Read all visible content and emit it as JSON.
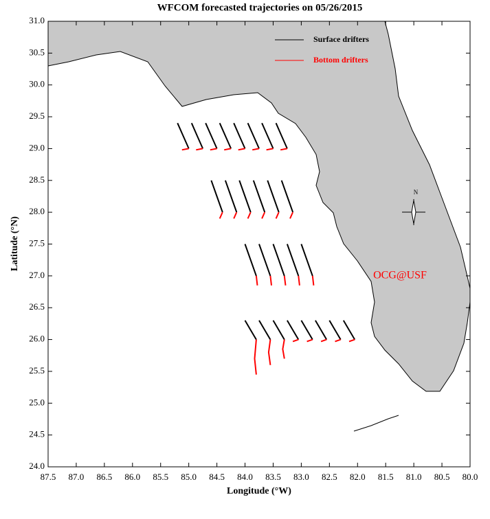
{
  "chart_data": {
    "type": "map",
    "title": "WFCOM forecasted trajectories on 05/26/2015",
    "x_label": "Longitude (°W)",
    "y_label": "Latitude (°N)",
    "annotation": "OCG@USF",
    "compass_label": "N",
    "xlim": [
      87.5,
      80.0
    ],
    "ylim": [
      24.0,
      31.0
    ],
    "xticks": [
      87.5,
      {
        "value": 87,
        "label": "87.0"
      },
      86.5,
      {
        "value": 86,
        "label": "86.0"
      },
      85.5,
      {
        "value": 85,
        "label": "85.0"
      },
      84.5,
      {
        "value": 84,
        "label": "84.0"
      },
      83.5,
      {
        "value": 83,
        "label": "83.0"
      },
      82.5,
      {
        "value": 82,
        "label": "82.0"
      },
      81.5,
      {
        "value": 81,
        "label": "81.0"
      },
      80.5,
      {
        "value": 80,
        "label": "80.0"
      }
    ],
    "yticks": [
      {
        "value": 24,
        "label": "24.0"
      },
      24.5,
      {
        "value": 25,
        "label": "25.0"
      },
      25.5,
      {
        "value": 26,
        "label": "26.0"
      },
      26.5,
      {
        "value": 27,
        "label": "27.0"
      },
      27.5,
      {
        "value": 28,
        "label": "28.0"
      },
      28.5,
      {
        "value": 29,
        "label": "29.0"
      },
      29.5,
      {
        "value": 30,
        "label": "30.0"
      },
      30.5,
      {
        "value": 31,
        "label": "31.0"
      }
    ],
    "series": [
      {
        "name": "Surface drifters",
        "color": "#000000",
        "x": [
          85.0,
          85.1,
          85.2,
          null,
          84.75,
          84.85,
          84.95,
          null,
          84.5,
          84.6,
          84.7,
          null,
          84.25,
          84.35,
          84.45,
          null,
          84.0,
          84.1,
          84.2,
          null,
          83.75,
          83.85,
          83.95,
          null,
          83.5,
          83.6,
          83.7,
          null,
          83.25,
          83.35,
          83.45,
          null,
          84.4,
          84.5,
          84.6,
          null,
          84.15,
          84.25,
          84.35,
          null,
          83.9,
          84.0,
          84.1,
          null,
          83.65,
          83.75,
          83.85,
          null,
          83.4,
          83.5,
          83.6,
          null,
          83.15,
          83.25,
          83.35,
          null,
          83.8,
          83.9,
          84.0,
          null,
          83.55,
          83.65,
          83.75,
          null,
          83.3,
          83.4,
          83.5,
          null,
          83.05,
          83.15,
          83.25,
          null,
          82.8,
          82.9,
          83.0,
          null,
          83.8,
          83.9,
          84.0,
          null,
          83.55,
          83.65,
          83.75,
          null,
          83.3,
          83.4,
          83.5,
          null,
          83.05,
          83.15,
          83.25,
          null,
          82.8,
          82.9,
          83.0,
          null,
          82.55,
          82.65,
          82.75,
          null,
          82.3,
          82.4,
          82.5,
          null,
          82.05,
          82.15,
          82.25
        ],
        "values": [
          29.0,
          29.2,
          29.4,
          null,
          29.0,
          29.2,
          29.4,
          null,
          29.0,
          29.2,
          29.4,
          null,
          29.0,
          29.2,
          29.4,
          null,
          29.0,
          29.2,
          29.4,
          null,
          29.0,
          29.2,
          29.4,
          null,
          29.0,
          29.2,
          29.4,
          null,
          29.0,
          29.2,
          29.4,
          null,
          28.0,
          28.25,
          28.5,
          null,
          28.0,
          28.25,
          28.5,
          null,
          28.0,
          28.25,
          28.5,
          null,
          28.0,
          28.25,
          28.5,
          null,
          28.0,
          28.25,
          28.5,
          null,
          28.0,
          28.25,
          28.5,
          null,
          27.0,
          27.25,
          27.5,
          null,
          27.0,
          27.25,
          27.5,
          null,
          27.0,
          27.25,
          27.5,
          null,
          27.0,
          27.25,
          27.5,
          null,
          27.0,
          27.25,
          27.5,
          null,
          26.0,
          26.15,
          26.3,
          null,
          26.0,
          26.15,
          26.3,
          null,
          26.0,
          26.15,
          26.3,
          null,
          26.0,
          26.15,
          26.3,
          null,
          26.0,
          26.15,
          26.3,
          null,
          26.0,
          26.15,
          26.3,
          null,
          26.0,
          26.15,
          26.3,
          null,
          26.0,
          26.15,
          26.3
        ]
      },
      {
        "name": "Bottom drifters",
        "color": "#ff0000",
        "x": [
          85.0,
          85.12,
          null,
          84.75,
          84.87,
          null,
          84.5,
          84.62,
          null,
          84.25,
          84.37,
          null,
          84.0,
          84.12,
          null,
          83.75,
          83.87,
          null,
          83.5,
          83.62,
          null,
          83.25,
          83.37,
          null,
          84.4,
          84.45,
          null,
          84.15,
          84.2,
          null,
          83.9,
          83.95,
          null,
          83.65,
          83.7,
          null,
          83.4,
          83.45,
          null,
          83.15,
          83.2,
          null,
          83.8,
          83.78,
          null,
          83.55,
          83.53,
          null,
          83.3,
          83.28,
          null,
          83.05,
          83.03,
          null,
          82.8,
          82.78,
          null,
          83.8,
          83.83,
          83.8,
          null,
          83.55,
          83.58,
          83.55,
          null,
          83.3,
          83.33,
          83.3,
          null,
          83.05,
          83.15,
          null,
          82.8,
          82.9,
          null,
          82.55,
          82.65,
          null,
          82.3,
          82.4,
          null,
          82.05,
          82.15
        ],
        "values": [
          29.0,
          28.98,
          null,
          29.0,
          28.98,
          null,
          29.0,
          28.98,
          null,
          29.0,
          28.98,
          null,
          29.0,
          28.98,
          null,
          29.0,
          28.98,
          null,
          29.0,
          28.98,
          null,
          29.0,
          28.98,
          null,
          28.0,
          27.9,
          null,
          28.0,
          27.9,
          null,
          28.0,
          27.9,
          null,
          28.0,
          27.9,
          null,
          28.0,
          27.9,
          null,
          28.0,
          27.9,
          null,
          27.0,
          26.85,
          null,
          27.0,
          26.85,
          null,
          27.0,
          26.85,
          null,
          27.0,
          26.85,
          null,
          27.0,
          26.85,
          null,
          26.0,
          25.7,
          25.45,
          null,
          26.0,
          25.8,
          25.6,
          null,
          26.0,
          25.85,
          25.7,
          null,
          26.0,
          25.97,
          null,
          26.0,
          25.97,
          null,
          26.0,
          25.97,
          null,
          26.0,
          25.97,
          null,
          26.0,
          25.97
        ]
      }
    ]
  }
}
